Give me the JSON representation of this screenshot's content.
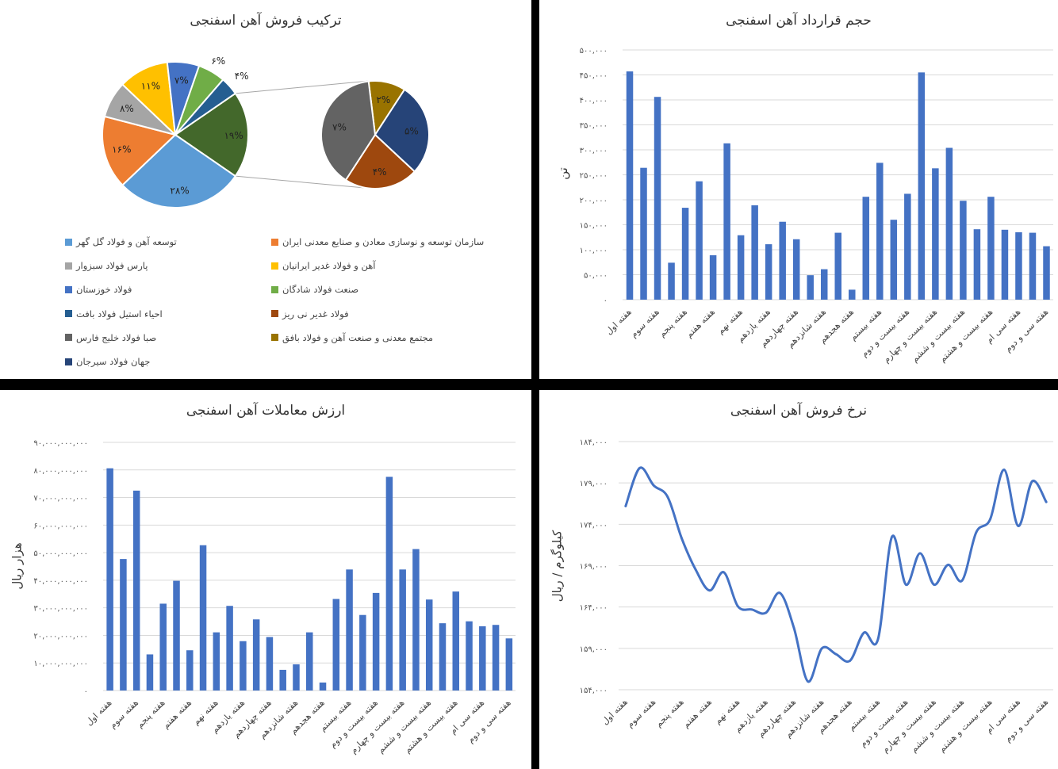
{
  "chart_data": [
    {
      "type": "pie",
      "title": "ترکیب فروش آهن اسفنجی",
      "subtype": "pie-of-pie",
      "primary": [
        {
          "name": "توسعه آهن و فولاد گل گهر",
          "value": 28,
          "label": "۲۸%",
          "color": "#5B9BD5"
        },
        {
          "name": "سازمان توسعه و نوسازی معادن و صنایع معدنی ایران",
          "value": 16,
          "label": "۱۶%",
          "color": "#ED7D31"
        },
        {
          "name": "پارس فولاد سبزوار",
          "value": 8,
          "label": "۸%",
          "color": "#A5A5A5"
        },
        {
          "name": "آهن و فولاد غدیر ایرانیان",
          "value": 11,
          "label": "۱۱%",
          "color": "#FFC000"
        },
        {
          "name": "فولاد خوزستان",
          "value": 7,
          "label": "۷%",
          "color": "#4472C4"
        },
        {
          "name": "صنعت فولاد شادگان",
          "value": 6,
          "label": "۶%",
          "color": "#70AD47"
        },
        {
          "name": "احیاء استیل فولاد بافت",
          "value": 4,
          "label": "۴%",
          "color": "#255E91"
        }
      ],
      "other": {
        "value": 19,
        "label": "۱۹%",
        "color": "#43682B"
      },
      "secondary": [
        {
          "name": "مجتمع معدنی و صنعت آهن و فولاد بافق",
          "value": 2,
          "label": "۲%",
          "color": "#997300"
        },
        {
          "name": "جهان فولاد سیرجان",
          "value": 5,
          "label": "۵%",
          "color": "#264478"
        },
        {
          "name": "فولاد غدیر نی ریز",
          "value": 4,
          "label": "۴%",
          "color": "#9E480E"
        },
        {
          "name": "صبا فولاد خلیج فارس",
          "value": 7,
          "label": "۷%",
          "color": "#636363"
        }
      ],
      "legend": [
        {
          "name": "توسعه آهن و فولاد گل گهر",
          "color": "#5B9BD5"
        },
        {
          "name": "سازمان توسعه و نوسازی معادن و صنایع معدنی ایران",
          "color": "#ED7D31"
        },
        {
          "name": "پارس فولاد سبزوار",
          "color": "#A5A5A5"
        },
        {
          "name": "آهن و فولاد غدیر ایرانیان",
          "color": "#FFC000"
        },
        {
          "name": "فولاد خوزستان",
          "color": "#4472C4"
        },
        {
          "name": "صنعت فولاد شادگان",
          "color": "#70AD47"
        },
        {
          "name": "احیاء استیل فولاد بافت",
          "color": "#255E91"
        },
        {
          "name": "فولاد غدیر نی ریز",
          "color": "#9E480E"
        },
        {
          "name": "صبا فولاد خلیج فارس",
          "color": "#636363"
        },
        {
          "name": "مجتمع معدنی و صنعت آهن و فولاد بافق",
          "color": "#997300"
        },
        {
          "name": "جهان فولاد سیرجان",
          "color": "#264478"
        }
      ],
      "legend_position": "bottom"
    },
    {
      "type": "bar",
      "title": "حجم قرارداد آهن اسفنجی",
      "ylabel": "تن",
      "ylim": [
        0,
        500000
      ],
      "yticks": [
        "۰",
        "۵۰,۰۰۰",
        "۱۰۰,۰۰۰",
        "۱۵۰,۰۰۰",
        "۲۰۰,۰۰۰",
        "۲۵۰,۰۰۰",
        "۳۰۰,۰۰۰",
        "۳۵۰,۰۰۰",
        "۴۰۰,۰۰۰",
        "۴۵۰,۰۰۰",
        "۵۰۰,۰۰۰"
      ],
      "categories": [
        "هفته اول",
        "",
        "هفته سوم",
        "",
        "هفته پنجم",
        "",
        "هفته هفتم",
        "",
        "هفته نهم",
        "",
        "هفته یازدهم",
        "",
        "هفته چهاردهم",
        "",
        "هفته شانزدهم",
        "",
        "هفته هجدهم",
        "",
        "هفته بیستم",
        "",
        "هفته بیست و دوم",
        "",
        "هفته بیست و چهارم",
        "",
        "هفته بیست و ششم",
        "",
        "هفته بیست و هشتم",
        "",
        "هفته سی ام",
        "",
        "هفته سی و دوم"
      ],
      "values": [
        457000,
        264000,
        406000,
        74000,
        184000,
        237000,
        89000,
        313000,
        129000,
        189000,
        111000,
        156000,
        121000,
        49000,
        61000,
        134000,
        20000,
        206000,
        274000,
        160000,
        212000,
        455000,
        263000,
        304000,
        198000,
        141000,
        206000,
        140000,
        135000,
        134000,
        107000
      ],
      "color": "#4472C4",
      "grid": true
    },
    {
      "type": "bar",
      "title": "ارزش معاملات آهن اسفنجی",
      "ylabel": "هزار ریال",
      "ylim": [
        0,
        90000000000
      ],
      "yticks": [
        "۰",
        "۱۰,۰۰۰,۰۰۰,۰۰۰",
        "۲۰,۰۰۰,۰۰۰,۰۰۰",
        "۳۰,۰۰۰,۰۰۰,۰۰۰",
        "۴۰,۰۰۰,۰۰۰,۰۰۰",
        "۵۰,۰۰۰,۰۰۰,۰۰۰",
        "۶۰,۰۰۰,۰۰۰,۰۰۰",
        "۷۰,۰۰۰,۰۰۰,۰۰۰",
        "۸۰,۰۰۰,۰۰۰,۰۰۰",
        "۹۰,۰۰۰,۰۰۰,۰۰۰"
      ],
      "categories": [
        "هفته اول",
        "",
        "هفته سوم",
        "",
        "هفته پنجم",
        "",
        "هفته هفتم",
        "",
        "هفته نهم",
        "",
        "هفته یازدهم",
        "",
        "هفته چهاردهم",
        "",
        "هفته شانزدهم",
        "",
        "هفته هجدهم",
        "",
        "هفته بیستم",
        "",
        "هفته بیست و دوم",
        "",
        "هفته بیست و چهارم",
        "",
        "هفته بیست و ششم",
        "",
        "هفته بیست و هشتم",
        "",
        "هفته سی ام",
        "",
        "هفته سی و دوم"
      ],
      "values": [
        80600000000,
        47700000000,
        72500000000,
        13100000000,
        31500000000,
        39800000000,
        14600000000,
        52700000000,
        21100000000,
        30700000000,
        17900000000,
        25800000000,
        19400000000,
        7500000000,
        9500000000,
        21100000000,
        2900000000,
        33200000000,
        43900000000,
        27400000000,
        35400000000,
        77500000000,
        43900000000,
        51300000000,
        33000000000,
        24400000000,
        35900000000,
        25100000000,
        23300000000,
        23800000000,
        18900000000
      ],
      "color": "#4472C4",
      "grid": true
    },
    {
      "type": "line",
      "title": "نرخ فروش آهن اسفنجی",
      "ylabel": "کیلوگرم / ریال",
      "ylim": [
        154000,
        184000
      ],
      "yticks": [
        "۱۵۴,۰۰۰",
        "۱۵۹,۰۰۰",
        "۱۶۴,۰۰۰",
        "۱۶۹,۰۰۰",
        "۱۷۴,۰۰۰",
        "۱۷۹,۰۰۰",
        "۱۸۴,۰۰۰"
      ],
      "categories": [
        "هفته اول",
        "",
        "هفته سوم",
        "",
        "هفته پنجم",
        "",
        "هفته هفتم",
        "",
        "هفته نهم",
        "",
        "هفته یازدهم",
        "",
        "هفته چهاردهم",
        "",
        "هفته شانزدهم",
        "",
        "هفته هجدهم",
        "",
        "هفته بیستم",
        "",
        "هفته بیست و دوم",
        "",
        "هفته بیست و چهارم",
        "",
        "هفته بیست و ششم",
        "",
        "هفته بیست و هشتم",
        "",
        "هفته سی ام",
        "",
        "هفته سی و دوم"
      ],
      "values": [
        176200,
        180800,
        178700,
        177300,
        172300,
        168500,
        166000,
        168200,
        164100,
        163700,
        163300,
        165700,
        161500,
        155000,
        159000,
        158300,
        157500,
        160900,
        160100,
        172500,
        166700,
        170500,
        166700,
        169100,
        167200,
        173000,
        174600,
        180600,
        173800,
        179200,
        176700
      ],
      "color": "#4472C4",
      "smooth": true,
      "grid": true
    }
  ]
}
